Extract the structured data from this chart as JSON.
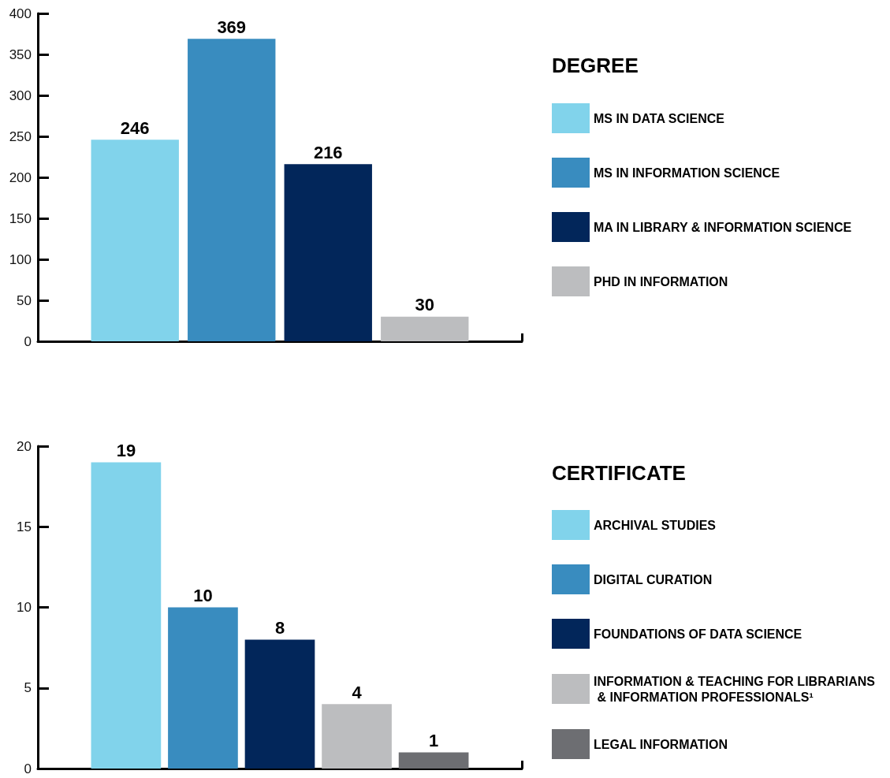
{
  "chart_data": [
    {
      "type": "bar",
      "legend_title": "DEGREE",
      "categories": [
        null
      ],
      "series": [
        {
          "name": "MS IN DATA SCIENCE",
          "color": "#81d3eb",
          "values": [
            246
          ]
        },
        {
          "name": "MS IN INFORMATION SCIENCE",
          "color": "#398cbf",
          "values": [
            369
          ]
        },
        {
          "name": "MA IN LIBRARY & INFORMATION SCIENCE",
          "color": "#02265a",
          "values": [
            216
          ]
        },
        {
          "name": "PHD IN INFORMATION",
          "color": "#bcbdbf",
          "values": [
            30
          ]
        }
      ],
      "ylim": [
        0,
        400
      ],
      "yticks": [
        0,
        50,
        100,
        150,
        200,
        250,
        300,
        350,
        400
      ],
      "data_labels": true,
      "legend": "right"
    },
    {
      "type": "bar",
      "legend_title": "CERTIFICATE",
      "categories": [
        null
      ],
      "series": [
        {
          "name": "ARCHIVAL STUDIES",
          "color": "#81d3eb",
          "values": [
            19
          ]
        },
        {
          "name": "DIGITAL CURATION",
          "color": "#398cbf",
          "values": [
            10
          ]
        },
        {
          "name": "FOUNDATIONS OF DATA SCIENCE",
          "color": "#02265a",
          "values": [
            8
          ]
        },
        {
          "name": "INFORMATION & TEACHING FOR LIBRARIANS & INFORMATION PROFESSIONALS¹",
          "color": "#bcbdbf",
          "values": [
            4
          ]
        },
        {
          "name": "LEGAL INFORMATION",
          "color": "#6d6e72",
          "values": [
            1
          ]
        }
      ],
      "ylim": [
        0,
        20
      ],
      "yticks": [
        0,
        5,
        10,
        15,
        20
      ],
      "data_labels": true,
      "legend": "right"
    }
  ]
}
